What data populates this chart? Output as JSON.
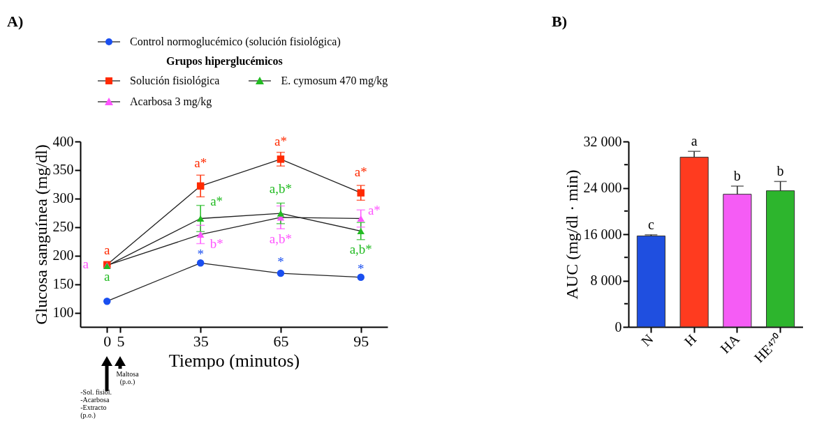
{
  "chart_data": [
    {
      "type": "line",
      "title": "A)",
      "xlabel": "Tiempo (minutos)",
      "ylabel": "Glucosa sanguínea (mg/dl)",
      "legend_title": "Grupos hiperglucémicos",
      "legend": "top",
      "grid": false,
      "x": [
        0,
        35,
        65,
        95
      ],
      "xlim": [
        -10,
        105
      ],
      "xticks": [
        0,
        5,
        35,
        65,
        95
      ],
      "ylim": [
        75,
        400
      ],
      "yticks": [
        100,
        150,
        200,
        250,
        300,
        350,
        400
      ],
      "series": [
        {
          "name": "Control normoglucémico (solución fisiológica)",
          "color": "#1a4ff0",
          "marker": "circle",
          "values": [
            120,
            187,
            169,
            162
          ]
        },
        {
          "name": "Solución fisiológica",
          "color": "#ff2a00",
          "marker": "square",
          "values": [
            184,
            322,
            369,
            310
          ],
          "errors": [
            null,
            19,
            12,
            13
          ]
        },
        {
          "name": "Acarbosa 3 mg/kg",
          "color": "#ff55ff",
          "marker": "triangle",
          "values": [
            183,
            237,
            267,
            265
          ],
          "errors": [
            null,
            16,
            20,
            15
          ]
        },
        {
          "name": "E. cymosum 470 mg/kg",
          "color": "#22bb22",
          "marker": "triangle",
          "values": [
            182,
            265,
            274,
            243
          ],
          "errors": [
            null,
            23,
            18,
            15
          ]
        }
      ],
      "annotations": [
        "a",
        "a",
        "a",
        "a*",
        "a*",
        "b*",
        "*",
        "a*",
        "a,b*",
        "a,b*",
        "*",
        "a*",
        "a*",
        "a,b*",
        "*",
        "Maltosa (p.o.)",
        "-Sol. fisiol.\n-Acarbosa\n-Extracto\n(p.o.)"
      ]
    },
    {
      "type": "bar",
      "title": "B)",
      "ylabel": "AUC (mg/dl · min)",
      "categories": [
        "N",
        "H",
        "HA",
        "HE⁴⁷⁰"
      ],
      "values": [
        15700,
        29300,
        22900,
        23500
      ],
      "colors": [
        "#1f4fe0",
        "#ff3b1f",
        "#f55cf5",
        "#2db52d"
      ],
      "errors": [
        [
          15700,
          15900
        ],
        [
          29300,
          30300
        ],
        [
          22900,
          24300
        ],
        [
          23500,
          25100
        ]
      ],
      "ylim": [
        0,
        32000
      ],
      "yticks": [
        {
          "value": 0,
          "label": "0"
        },
        {
          "value": 4000,
          "label": null
        },
        {
          "value": 8000,
          "label": "8 000"
        },
        {
          "value": 12000,
          "label": null
        },
        {
          "value": 16000,
          "label": "16 000"
        },
        {
          "value": 20000,
          "label": null
        },
        {
          "value": 24000,
          "label": "24 000"
        },
        {
          "value": 28000,
          "label": null
        },
        {
          "value": 32000,
          "label": "32 000"
        }
      ],
      "annotations": [
        {
          "text": "c",
          "x": "N",
          "y": 15900
        },
        {
          "text": "a",
          "x": "H",
          "y": 30300
        },
        {
          "text": "b",
          "x": "HA",
          "y": 24300
        },
        {
          "text": "b",
          "x": "HE⁴⁷⁰",
          "y": 25100
        }
      ]
    }
  ]
}
